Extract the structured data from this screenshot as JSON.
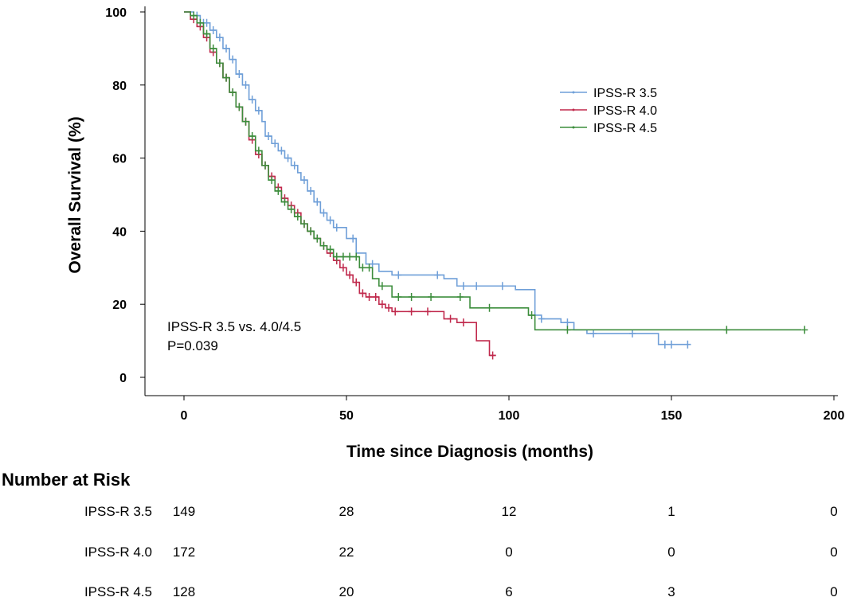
{
  "chart_data": {
    "type": "line",
    "title": "",
    "xlabel": "Time since Diagnosis (months)",
    "ylabel": "Overall Survival (%)",
    "xlim": [
      0,
      200
    ],
    "ylim": [
      0,
      100
    ],
    "xticks": [
      0,
      50,
      100,
      150,
      200
    ],
    "yticks": [
      0,
      20,
      40,
      60,
      80,
      100
    ],
    "grid": false,
    "legend_position": "top-right",
    "annotation": [
      "IPSS-R 3.5 vs. 4.0/4.5",
      "P=0.039"
    ],
    "series": [
      {
        "name": "IPSS-R 3.5",
        "color": "#6f9fd8",
        "step": [
          [
            0,
            100
          ],
          [
            3,
            99
          ],
          [
            5,
            97
          ],
          [
            8,
            95
          ],
          [
            10,
            93
          ],
          [
            12,
            90
          ],
          [
            14,
            87
          ],
          [
            16,
            83
          ],
          [
            18,
            80
          ],
          [
            20,
            76
          ],
          [
            22,
            73
          ],
          [
            24,
            70
          ],
          [
            25,
            66
          ],
          [
            27,
            64
          ],
          [
            29,
            62
          ],
          [
            31,
            60
          ],
          [
            33,
            58
          ],
          [
            35,
            56
          ],
          [
            36,
            54
          ],
          [
            38,
            51
          ],
          [
            40,
            48
          ],
          [
            42,
            45
          ],
          [
            44,
            43
          ],
          [
            46,
            41
          ],
          [
            50,
            38
          ],
          [
            53,
            34
          ],
          [
            56,
            31
          ],
          [
            60,
            29
          ],
          [
            64,
            28
          ],
          [
            80,
            27
          ],
          [
            84,
            25
          ],
          [
            94,
            25
          ],
          [
            102,
            24
          ],
          [
            108,
            17
          ],
          [
            110,
            16
          ],
          [
            116,
            15
          ],
          [
            120,
            13
          ],
          [
            124,
            12
          ],
          [
            145,
            12
          ],
          [
            146,
            9
          ],
          [
            156,
            9
          ]
        ],
        "censor_x": [
          4,
          6,
          7,
          9,
          11,
          13,
          15,
          17,
          19,
          21,
          23,
          26,
          28,
          30,
          32,
          34,
          37,
          39,
          41,
          43,
          45,
          47,
          52,
          58,
          66,
          78,
          86,
          90,
          98,
          110,
          118,
          126,
          138,
          148,
          150,
          155
        ]
      },
      {
        "name": "IPSS-R 4.0",
        "color": "#c0294c",
        "step": [
          [
            0,
            100
          ],
          [
            2,
            98
          ],
          [
            4,
            96
          ],
          [
            6,
            93
          ],
          [
            8,
            89
          ],
          [
            10,
            86
          ],
          [
            12,
            82
          ],
          [
            14,
            78
          ],
          [
            16,
            74
          ],
          [
            18,
            70
          ],
          [
            20,
            65
          ],
          [
            22,
            61
          ],
          [
            24,
            58
          ],
          [
            26,
            55
          ],
          [
            28,
            52
          ],
          [
            30,
            49
          ],
          [
            32,
            47
          ],
          [
            34,
            45
          ],
          [
            36,
            42
          ],
          [
            38,
            40
          ],
          [
            40,
            38
          ],
          [
            42,
            36
          ],
          [
            44,
            34
          ],
          [
            46,
            32
          ],
          [
            48,
            30
          ],
          [
            50,
            28
          ],
          [
            52,
            26
          ],
          [
            54,
            23
          ],
          [
            56,
            22
          ],
          [
            60,
            20
          ],
          [
            62,
            19
          ],
          [
            64,
            18
          ],
          [
            72,
            18
          ],
          [
            80,
            16
          ],
          [
            84,
            15
          ],
          [
            88,
            15
          ],
          [
            90,
            10
          ],
          [
            94,
            6
          ],
          [
            96,
            6
          ]
        ],
        "censor_x": [
          3,
          5,
          7,
          9,
          11,
          13,
          15,
          17,
          19,
          21,
          23,
          25,
          27,
          29,
          31,
          33,
          35,
          37,
          39,
          41,
          43,
          45,
          47,
          49,
          51,
          53,
          55,
          57,
          59,
          61,
          63,
          65,
          70,
          75,
          82,
          86,
          95
        ]
      },
      {
        "name": "IPSS-R 4.5",
        "color": "#3c8d3c",
        "step": [
          [
            0,
            100
          ],
          [
            2,
            99
          ],
          [
            4,
            97
          ],
          [
            6,
            94
          ],
          [
            8,
            90
          ],
          [
            10,
            86
          ],
          [
            12,
            82
          ],
          [
            14,
            78
          ],
          [
            16,
            74
          ],
          [
            18,
            70
          ],
          [
            20,
            66
          ],
          [
            22,
            62
          ],
          [
            24,
            58
          ],
          [
            26,
            54
          ],
          [
            28,
            51
          ],
          [
            30,
            48
          ],
          [
            32,
            46
          ],
          [
            34,
            44
          ],
          [
            36,
            42
          ],
          [
            38,
            40
          ],
          [
            40,
            38
          ],
          [
            42,
            36
          ],
          [
            44,
            35
          ],
          [
            46,
            33
          ],
          [
            52,
            33
          ],
          [
            54,
            30
          ],
          [
            58,
            27
          ],
          [
            60,
            25
          ],
          [
            64,
            22
          ],
          [
            80,
            22
          ],
          [
            88,
            19
          ],
          [
            95,
            19
          ],
          [
            106,
            17
          ],
          [
            108,
            13
          ],
          [
            190,
            13
          ]
        ],
        "censor_x": [
          3,
          5,
          7,
          9,
          11,
          13,
          15,
          17,
          19,
          21,
          23,
          25,
          27,
          29,
          31,
          33,
          35,
          37,
          39,
          41,
          43,
          45,
          47,
          49,
          51,
          53,
          55,
          57,
          61,
          66,
          70,
          76,
          85,
          94,
          107,
          118,
          167,
          191
        ]
      }
    ]
  },
  "risk_table": {
    "title": "Number at Risk",
    "columns_x": [
      0,
      50,
      100,
      150,
      200
    ],
    "rows": [
      {
        "label": "IPSS-R 3.5",
        "values": [
          "149",
          "28",
          "12",
          "1",
          "0"
        ]
      },
      {
        "label": "IPSS-R 4.0",
        "values": [
          "172",
          "22",
          "0",
          "0",
          "0"
        ]
      },
      {
        "label": "IPSS-R 4.5",
        "values": [
          "128",
          "20",
          "6",
          "3",
          "0"
        ]
      }
    ]
  }
}
